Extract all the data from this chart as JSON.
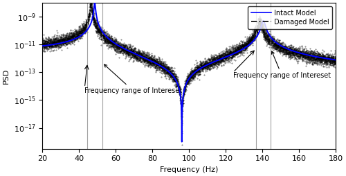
{
  "freq_min": 20,
  "freq_max": 180,
  "resonance1": 48.5,
  "resonance2": 140.5,
  "antiresonance": 96.0,
  "ylim_log": [
    -18.5,
    -8
  ],
  "ylabel": "PSD",
  "xlabel": "Frequency (Hz)",
  "legend_intact": "Intact Model",
  "legend_damaged": "Damaged Model",
  "intact_color": "#0000FF",
  "damaged_color": "#000000",
  "vline_color": "#999999",
  "noise_scale": 0.5,
  "annotation_text": "Frequency range of Intereset",
  "vlines1": [
    44.5,
    52.5
  ],
  "vlines2": [
    136.5,
    144.5
  ],
  "axis_fontsize": 8,
  "legend_fontsize": 7,
  "annotation_fontsize": 7,
  "res1_damaged": 46.5,
  "res2_damaged": 138.5,
  "zeta_intact": 0.006,
  "zeta_damaged": 0.007,
  "peak_log": -8.0,
  "baseline_log": -13.0,
  "anti_log": -18.0
}
